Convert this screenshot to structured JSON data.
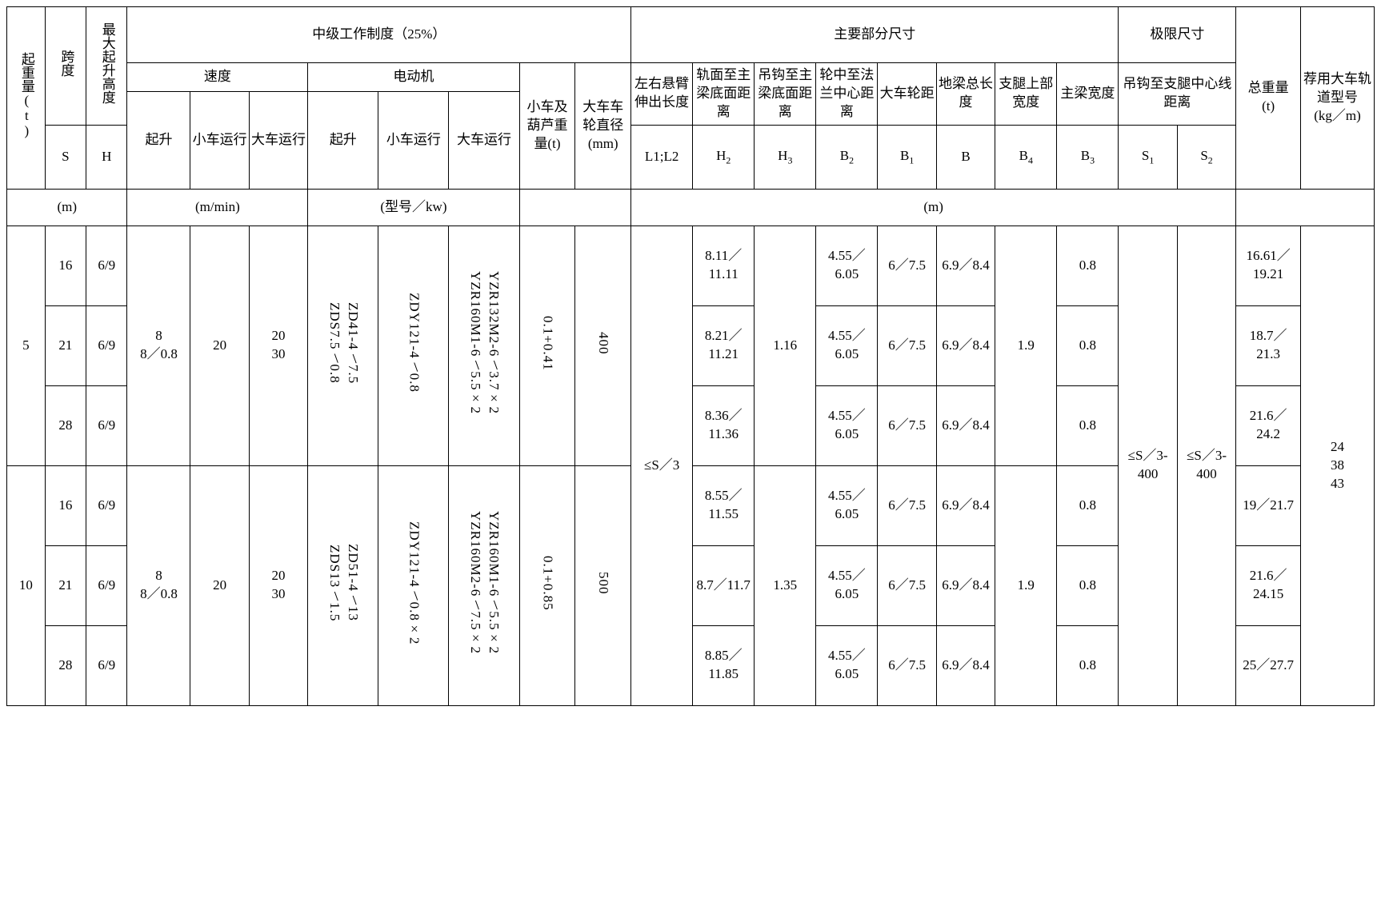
{
  "headers": {
    "lifting_capacity": "起重量(t)",
    "span": "跨度",
    "max_lift_height": "最大起升高度",
    "medium_duty": "中级工作制度（25%）",
    "main_dims": "主要部分尺寸",
    "limit_dims": "极限尺寸",
    "total_weight": "总重量",
    "total_weight_unit": "(t)",
    "rail_model": "荐用大车轨道型号",
    "rail_model_unit": "(kg／m)",
    "speed": "速度",
    "motor": "电动机",
    "trolley_hoist_weight": "小车及葫芦重量(t)",
    "wheel_diam": "大车车轮直径(mm)",
    "cantilever": "左右悬臂伸出长度",
    "rail_to_beam": "轨面至主梁底面距离",
    "hook_to_beam": "吊钩至主梁底面距离",
    "wheel_to_flange": "轮中至法兰中心距离",
    "wheel_base": "大车轮距",
    "ground_beam_len": "地梁总长度",
    "leg_upper_width": "支腿上部宽度",
    "main_beam_width": "主梁宽度",
    "hook_to_leg_center": "吊钩至支腿中心线距离",
    "lift": "起升",
    "trolley_travel": "小车运行",
    "crane_travel": "大车运行",
    "S": "S",
    "H": "H",
    "L1L2": "L1;L2",
    "H2": "H",
    "H3": "H",
    "B2": "B",
    "B1": "B",
    "B": "B",
    "B4": "B",
    "B3": "B",
    "S1": "S",
    "S2": "S",
    "unit_m": "(m)",
    "unit_mmin": "(m/min)",
    "unit_model_kw": "(型号／kw)"
  },
  "groups": [
    {
      "capacity": "5",
      "lift_speed": "8\n8／0.8",
      "trolley_speed": "20",
      "crane_speed": "20\n30",
      "lift_motor": "ZD41-4﹨7.5\nZDS7.5﹨0.8",
      "trolley_motor": "ZDY121-4﹨0.8",
      "crane_motor": "YZR132M2-6﹨3.7×2\nYZR160M1-6﹨5.5×2",
      "hoist_weight": "0.1+0.41",
      "wheel_diam": "400",
      "H3": "1.16",
      "B4": "1.9",
      "rows": [
        {
          "S": "16",
          "H": "6/9",
          "H2": "8.11／11.11",
          "B2": "4.55／6.05",
          "B1": "6／7.5",
          "B": "6.9／8.4",
          "B3": "0.8",
          "total": "16.61／19.21"
        },
        {
          "S": "21",
          "H": "6/9",
          "H2": "8.21／11.21",
          "B2": "4.55／6.05",
          "B1": "6／7.5",
          "B": "6.9／8.4",
          "B3": "0.8",
          "total": "18.7／21.3"
        },
        {
          "S": "28",
          "H": "6/9",
          "H2": "8.36／11.36",
          "B2": "4.55／6.05",
          "B1": "6／7.5",
          "B": "6.9／8.4",
          "B3": "0.8",
          "total": "21.6／24.2"
        }
      ]
    },
    {
      "capacity": "10",
      "lift_speed": "8\n8／0.8",
      "trolley_speed": "20",
      "crane_speed": "20\n30",
      "lift_motor": "ZD51-4﹨13\nZDS13﹨1.5",
      "trolley_motor": "ZDY121-4﹨0.8×2",
      "crane_motor": "YZR160M1-6﹨5.5×2\nYZR160M2-6﹨7.5×2",
      "hoist_weight": "0.1+0.85",
      "wheel_diam": "500",
      "H3": "1.35",
      "B4": "1.9",
      "rows": [
        {
          "S": "16",
          "H": "6/9",
          "H2": "8.55／11.55",
          "B2": "4.55／6.05",
          "B1": "6／7.5",
          "B": "6.9／8.4",
          "B3": "0.8",
          "total": "19／21.7"
        },
        {
          "S": "21",
          "H": "6/9",
          "H2": "8.7／11.7",
          "B2": "4.55／6.05",
          "B1": "6／7.5",
          "B": "6.9／8.4",
          "B3": "0.8",
          "total": "21.6／24.15"
        },
        {
          "S": "28",
          "H": "6/9",
          "H2": "8.85／11.85",
          "B2": "4.55／6.05",
          "B1": "6／7.5",
          "B": "6.9／8.4",
          "B3": "0.8",
          "total": "25／27.7"
        }
      ]
    }
  ],
  "shared": {
    "L1L2": "≤S／3",
    "S1": "≤S／3-400",
    "S2": "≤S／3-400",
    "rail": "24\n38\n43"
  }
}
